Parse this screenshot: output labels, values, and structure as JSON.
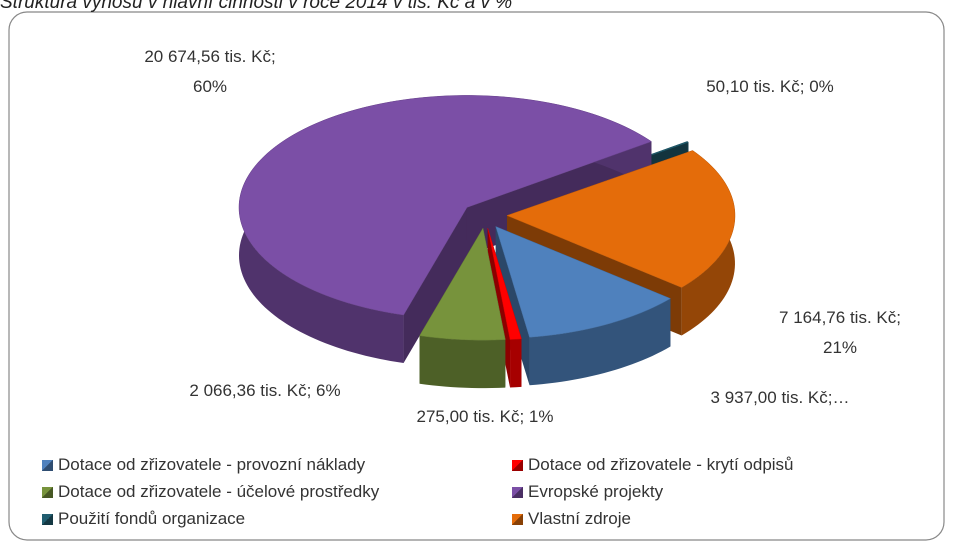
{
  "chart_data": {
    "type": "pie3d",
    "title": "Struktura výnosů v hlavní činnosti v roce 2014 v tis. Kč a v %",
    "categories": [
      "Dotace od zřizovatele - provozní náklady",
      "Dotace od zřizovatele - krytí odpisů",
      "Dotace od zřizovatele - účelové prostředky",
      "Evropské projekty",
      "Použití fondů organizace",
      "Vlastní zdroje"
    ],
    "values": [
      3937.0,
      275.0,
      2066.36,
      20674.56,
      50.1,
      7164.76
    ],
    "value_labels": [
      "3 937,00 tis. Kč;…",
      "275,00 tis. Kč; 1%",
      "2 066,36 tis. Kč; 6%",
      "20 674,56 tis. Kč;\n60%",
      "50,10 tis. Kč; 0%",
      "7 164,76 tis. Kč;\n21%"
    ],
    "colors": [
      "#4f81bd",
      "#ff0000",
      "#77933c",
      "#7b4fa6",
      "#215e70",
      "#e46c0a"
    ],
    "legend": "bottom"
  }
}
